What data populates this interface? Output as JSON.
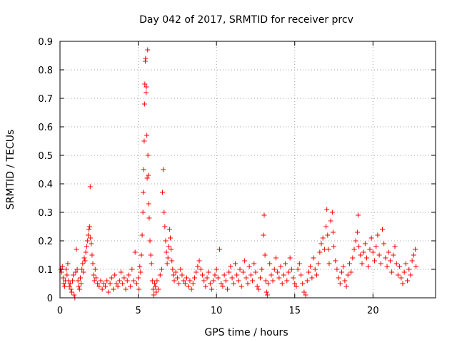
{
  "chart_data": {
    "type": "scatter",
    "title": "Day 042 of 2017, SRMTID for receiver prcv",
    "xlabel": "GPS time / hours",
    "ylabel": "SRMTID / TECUs",
    "xlim": [
      0,
      24
    ],
    "ylim": [
      0,
      0.9
    ],
    "xticks": [
      0,
      5,
      10,
      15,
      20
    ],
    "yticks": [
      0,
      0.1,
      0.2,
      0.3,
      0.4,
      0.5,
      0.6,
      0.7,
      0.8,
      0.9
    ],
    "grid": true,
    "marker": "+",
    "series": [
      {
        "name": "SRMTID",
        "color": "#ff0000",
        "points": [
          [
            0.05,
            0.1
          ],
          [
            0.1,
            0.09
          ],
          [
            0.15,
            0.11
          ],
          [
            0.2,
            0.07
          ],
          [
            0.25,
            0.05
          ],
          [
            0.3,
            0.04
          ],
          [
            0.35,
            0.06
          ],
          [
            0.4,
            0.1
          ],
          [
            0.45,
            0.08
          ],
          [
            0.5,
            0.12
          ],
          [
            0.55,
            0.06
          ],
          [
            0.6,
            0.04
          ],
          [
            0.65,
            0.05
          ],
          [
            0.7,
            0.03
          ],
          [
            0.75,
            0.02
          ],
          [
            0.8,
            0.06
          ],
          [
            0.85,
            0.08
          ],
          [
            0.9,
            0.01
          ],
          [
            0.95,
            0.0
          ],
          [
            1.0,
            0.09
          ],
          [
            1.05,
            0.17
          ],
          [
            1.1,
            0.1
          ],
          [
            1.15,
            0.06
          ],
          [
            1.2,
            0.04
          ],
          [
            1.25,
            0.03
          ],
          [
            1.3,
            0.07
          ],
          [
            1.35,
            0.05
          ],
          [
            1.4,
            0.1
          ],
          [
            1.45,
            0.12
          ],
          [
            1.5,
            0.09
          ],
          [
            1.55,
            0.14
          ],
          [
            1.6,
            0.13
          ],
          [
            1.65,
            0.16
          ],
          [
            1.7,
            0.18
          ],
          [
            1.75,
            0.2
          ],
          [
            1.8,
            0.22
          ],
          [
            1.85,
            0.24
          ],
          [
            1.9,
            0.25
          ],
          [
            1.95,
            0.21
          ],
          [
            2.0,
            0.19
          ],
          [
            1.93,
            0.39
          ],
          [
            2.05,
            0.15
          ],
          [
            2.1,
            0.12
          ],
          [
            2.15,
            0.08
          ],
          [
            2.2,
            0.06
          ],
          [
            2.25,
            0.1
          ],
          [
            2.3,
            0.07
          ],
          [
            2.4,
            0.05
          ],
          [
            2.5,
            0.04
          ],
          [
            2.6,
            0.06
          ],
          [
            2.7,
            0.03
          ],
          [
            2.8,
            0.05
          ],
          [
            2.9,
            0.04
          ],
          [
            3.0,
            0.06
          ],
          [
            3.1,
            0.02
          ],
          [
            3.2,
            0.05
          ],
          [
            3.3,
            0.07
          ],
          [
            3.4,
            0.03
          ],
          [
            3.5,
            0.08
          ],
          [
            3.6,
            0.05
          ],
          [
            3.7,
            0.04
          ],
          [
            3.8,
            0.06
          ],
          [
            3.9,
            0.09
          ],
          [
            4.0,
            0.05
          ],
          [
            4.1,
            0.07
          ],
          [
            4.2,
            0.03
          ],
          [
            4.3,
            0.06
          ],
          [
            4.4,
            0.08
          ],
          [
            4.5,
            0.04
          ],
          [
            4.6,
            0.1
          ],
          [
            4.7,
            0.06
          ],
          [
            4.8,
            0.16
          ],
          [
            4.9,
            0.05
          ],
          [
            5.0,
            0.07
          ],
          [
            5.05,
            0.03
          ],
          [
            5.1,
            0.11
          ],
          [
            5.15,
            0.09
          ],
          [
            5.2,
            0.15
          ],
          [
            5.25,
            0.22
          ],
          [
            5.3,
            0.3
          ],
          [
            5.32,
            0.37
          ],
          [
            5.35,
            0.45
          ],
          [
            5.38,
            0.55
          ],
          [
            5.4,
            0.68
          ],
          [
            5.42,
            0.75
          ],
          [
            5.45,
            0.83
          ],
          [
            5.47,
            0.84
          ],
          [
            5.5,
            0.72
          ],
          [
            5.52,
            0.74
          ],
          [
            5.55,
            0.57
          ],
          [
            5.57,
            0.42
          ],
          [
            5.6,
            0.87
          ],
          [
            5.62,
            0.5
          ],
          [
            5.65,
            0.43
          ],
          [
            5.67,
            0.33
          ],
          [
            5.7,
            0.28
          ],
          [
            5.75,
            0.2
          ],
          [
            5.8,
            0.15
          ],
          [
            5.85,
            0.12
          ],
          [
            5.9,
            0.06
          ],
          [
            5.95,
            0.03
          ],
          [
            6.0,
            0.01
          ],
          [
            6.05,
            0.05
          ],
          [
            6.1,
            0.04
          ],
          [
            6.15,
            0.02
          ],
          [
            6.2,
            0.06
          ],
          [
            6.3,
            0.03
          ],
          [
            6.4,
            0.08
          ],
          [
            6.5,
            0.1
          ],
          [
            6.55,
            0.37
          ],
          [
            6.6,
            0.45
          ],
          [
            6.65,
            0.3
          ],
          [
            6.7,
            0.25
          ],
          [
            6.75,
            0.2
          ],
          [
            6.8,
            0.16
          ],
          [
            6.85,
            0.12
          ],
          [
            6.9,
            0.14
          ],
          [
            6.95,
            0.18
          ],
          [
            7.0,
            0.24
          ],
          [
            7.05,
            0.21
          ],
          [
            7.1,
            0.17
          ],
          [
            7.15,
            0.13
          ],
          [
            7.2,
            0.1
          ],
          [
            7.25,
            0.08
          ],
          [
            7.3,
            0.06
          ],
          [
            7.4,
            0.09
          ],
          [
            7.5,
            0.07
          ],
          [
            7.6,
            0.05
          ],
          [
            7.7,
            0.1
          ],
          [
            7.8,
            0.08
          ],
          [
            7.9,
            0.06
          ],
          [
            8.0,
            0.05
          ],
          [
            8.1,
            0.07
          ],
          [
            8.2,
            0.04
          ],
          [
            8.3,
            0.06
          ],
          [
            8.4,
            0.03
          ],
          [
            8.5,
            0.05
          ],
          [
            8.6,
            0.07
          ],
          [
            8.7,
            0.09
          ],
          [
            8.8,
            0.11
          ],
          [
            8.9,
            0.13
          ],
          [
            9.0,
            0.1
          ],
          [
            9.1,
            0.08
          ],
          [
            9.2,
            0.06
          ],
          [
            9.3,
            0.04
          ],
          [
            9.4,
            0.07
          ],
          [
            9.5,
            0.09
          ],
          [
            9.6,
            0.05
          ],
          [
            9.7,
            0.03
          ],
          [
            9.8,
            0.06
          ],
          [
            9.9,
            0.08
          ],
          [
            10.0,
            0.1
          ],
          [
            10.1,
            0.07
          ],
          [
            10.2,
            0.17
          ],
          [
            10.3,
            0.05
          ],
          [
            10.4,
            0.04
          ],
          [
            10.5,
            0.08
          ],
          [
            10.6,
            0.06
          ],
          [
            10.7,
            0.03
          ],
          [
            10.8,
            0.09
          ],
          [
            10.9,
            0.11
          ],
          [
            11.0,
            0.07
          ],
          [
            11.1,
            0.05
          ],
          [
            11.2,
            0.12
          ],
          [
            11.3,
            0.08
          ],
          [
            11.4,
            0.06
          ],
          [
            11.5,
            0.1
          ],
          [
            11.6,
            0.04
          ],
          [
            11.7,
            0.09
          ],
          [
            11.8,
            0.13
          ],
          [
            11.9,
            0.07
          ],
          [
            12.0,
            0.05
          ],
          [
            12.1,
            0.11
          ],
          [
            12.2,
            0.08
          ],
          [
            12.3,
            0.06
          ],
          [
            12.4,
            0.12
          ],
          [
            12.5,
            0.09
          ],
          [
            12.6,
            0.04
          ],
          [
            12.7,
            0.03
          ],
          [
            12.8,
            0.07
          ],
          [
            12.9,
            0.1
          ],
          [
            13.0,
            0.22
          ],
          [
            13.05,
            0.29
          ],
          [
            13.1,
            0.15
          ],
          [
            13.15,
            0.06
          ],
          [
            13.2,
            0.02
          ],
          [
            13.25,
            0.01
          ],
          [
            13.3,
            0.05
          ],
          [
            13.4,
            0.12
          ],
          [
            13.5,
            0.08
          ],
          [
            13.6,
            0.06
          ],
          [
            13.7,
            0.1
          ],
          [
            13.8,
            0.14
          ],
          [
            13.9,
            0.09
          ],
          [
            14.0,
            0.07
          ],
          [
            14.1,
            0.11
          ],
          [
            14.2,
            0.05
          ],
          [
            14.3,
            0.08
          ],
          [
            14.4,
            0.12
          ],
          [
            14.5,
            0.06
          ],
          [
            14.6,
            0.09
          ],
          [
            14.7,
            0.14
          ],
          [
            14.8,
            0.1
          ],
          [
            14.9,
            0.07
          ],
          [
            15.0,
            0.05
          ],
          [
            15.1,
            0.04
          ],
          [
            15.2,
            0.1
          ],
          [
            15.3,
            0.12
          ],
          [
            15.4,
            0.08
          ],
          [
            15.5,
            0.05
          ],
          [
            15.6,
            0.02
          ],
          [
            15.7,
            0.01
          ],
          [
            15.8,
            0.06
          ],
          [
            15.9,
            0.09
          ],
          [
            16.0,
            0.11
          ],
          [
            16.1,
            0.07
          ],
          [
            16.2,
            0.14
          ],
          [
            16.3,
            0.1
          ],
          [
            16.4,
            0.08
          ],
          [
            16.5,
            0.12
          ],
          [
            16.6,
            0.16
          ],
          [
            16.7,
            0.19
          ],
          [
            16.8,
            0.21
          ],
          [
            16.9,
            0.17
          ],
          [
            17.0,
            0.25
          ],
          [
            17.05,
            0.31
          ],
          [
            17.1,
            0.22
          ],
          [
            17.15,
            0.17
          ],
          [
            17.2,
            0.12
          ],
          [
            17.3,
            0.27
          ],
          [
            17.4,
            0.3
          ],
          [
            17.45,
            0.23
          ],
          [
            17.5,
            0.18
          ],
          [
            17.6,
            0.13
          ],
          [
            17.7,
            0.1
          ],
          [
            17.8,
            0.07
          ],
          [
            17.9,
            0.05
          ],
          [
            18.0,
            0.09
          ],
          [
            18.1,
            0.11
          ],
          [
            18.2,
            0.06
          ],
          [
            18.3,
            0.04
          ],
          [
            18.4,
            0.08
          ],
          [
            18.5,
            0.12
          ],
          [
            18.6,
            0.09
          ],
          [
            18.7,
            0.14
          ],
          [
            18.8,
            0.17
          ],
          [
            18.9,
            0.2
          ],
          [
            19.0,
            0.23
          ],
          [
            19.05,
            0.29
          ],
          [
            19.1,
            0.18
          ],
          [
            19.2,
            0.15
          ],
          [
            19.3,
            0.12
          ],
          [
            19.4,
            0.16
          ],
          [
            19.5,
            0.19
          ],
          [
            19.6,
            0.14
          ],
          [
            19.7,
            0.11
          ],
          [
            19.8,
            0.17
          ],
          [
            19.9,
            0.21
          ],
          [
            20.0,
            0.16
          ],
          [
            20.1,
            0.13
          ],
          [
            20.2,
            0.18
          ],
          [
            20.3,
            0.22
          ],
          [
            20.4,
            0.15
          ],
          [
            20.5,
            0.12
          ],
          [
            20.6,
            0.24
          ],
          [
            20.7,
            0.19
          ],
          [
            20.8,
            0.14
          ],
          [
            20.9,
            0.11
          ],
          [
            21.0,
            0.16
          ],
          [
            21.1,
            0.13
          ],
          [
            21.2,
            0.09
          ],
          [
            21.3,
            0.15
          ],
          [
            21.4,
            0.18
          ],
          [
            21.5,
            0.12
          ],
          [
            21.6,
            0.08
          ],
          [
            21.7,
            0.11
          ],
          [
            21.8,
            0.07
          ],
          [
            21.9,
            0.05
          ],
          [
            22.0,
            0.09
          ],
          [
            22.1,
            0.12
          ],
          [
            22.2,
            0.06
          ],
          [
            22.3,
            0.1
          ],
          [
            22.4,
            0.08
          ],
          [
            22.5,
            0.13
          ],
          [
            22.6,
            0.15
          ],
          [
            22.7,
            0.17
          ],
          [
            22.75,
            0.11
          ]
        ]
      }
    ]
  }
}
